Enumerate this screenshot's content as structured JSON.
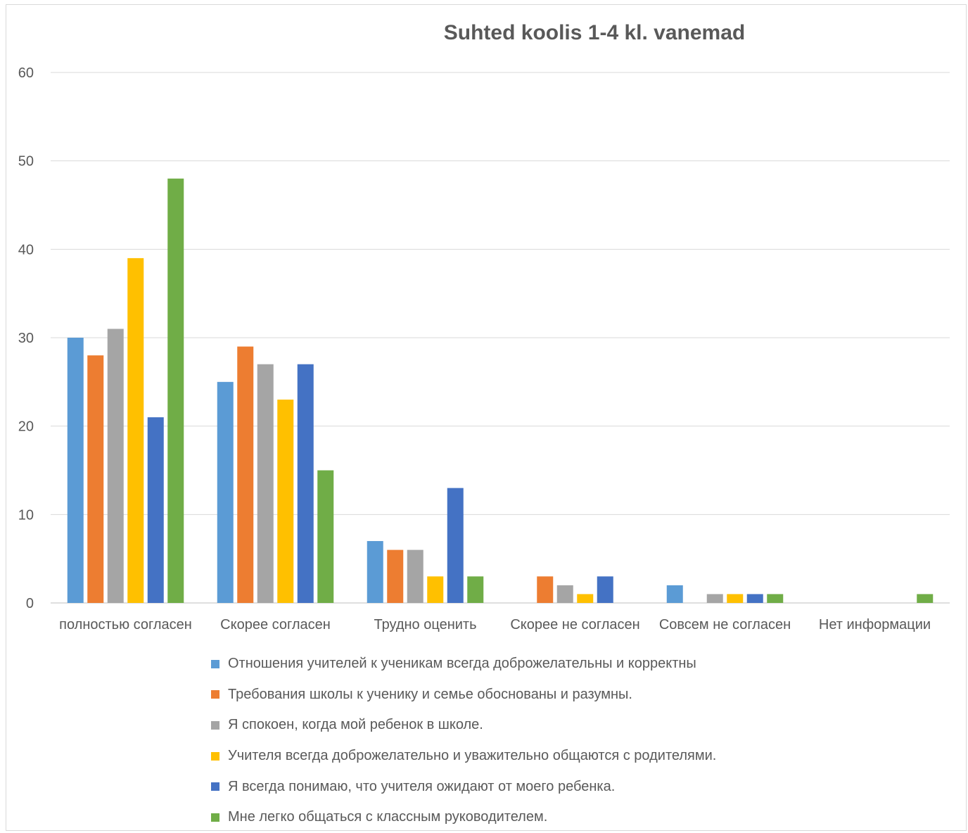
{
  "chart_data": {
    "type": "bar",
    "title": "Suhted koolis 1-4 kl. vanemad",
    "categories": [
      "полностью согласен",
      "Скорее согласен",
      "Трудно оценить",
      "Скорее не согласен",
      "Совсем не согласен",
      "Нет информации"
    ],
    "ylim": [
      0,
      60
    ],
    "yticks": [
      0,
      10,
      20,
      30,
      40,
      50,
      60
    ],
    "grid": true,
    "legend_position": "bottom",
    "series": [
      {
        "name": "Отношения учителей к ученикам всегда доброжелательны и корректны",
        "color": "#5B9BD5",
        "values": [
          30,
          25,
          7,
          0,
          2,
          0
        ]
      },
      {
        "name": "Требования школы к ученику и семье обоснованы и разумны.",
        "color": "#ED7D31",
        "values": [
          28,
          29,
          6,
          3,
          0,
          0
        ]
      },
      {
        "name": "Я спокоен, когда мой ребенок в школе.",
        "color": "#A5A5A5",
        "values": [
          31,
          27,
          6,
          2,
          1,
          0
        ]
      },
      {
        "name": "Учителя всегда доброжелательно и уважительно общаются с родителями.",
        "color": "#FFC000",
        "values": [
          39,
          23,
          3,
          1,
          1,
          0
        ]
      },
      {
        "name": "Я всегда понимаю, что учителя ожидают от моего ребенка.",
        "color": "#4472C4",
        "values": [
          21,
          27,
          13,
          3,
          1,
          0
        ]
      },
      {
        "name": "Мне легко общаться с классным руководителем.",
        "color": "#70AD47",
        "values": [
          48,
          15,
          3,
          0,
          1,
          1
        ]
      }
    ]
  }
}
